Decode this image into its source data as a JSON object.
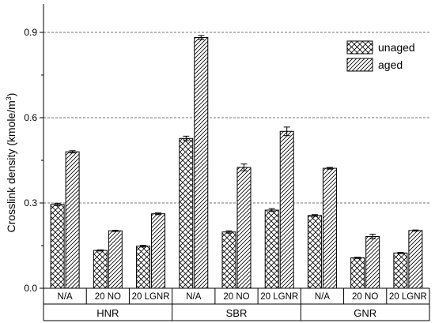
{
  "chart_data": {
    "type": "bar",
    "ylabel": "Crosslink density (kmole/m",
    "ylabel_sup": "3",
    "ylabel_close": ")",
    "ylim": [
      0,
      1.0
    ],
    "yticks": [
      "0.0",
      "0.3",
      "0.6",
      "0.9"
    ],
    "ytick_values": [
      0.0,
      0.3,
      0.6,
      0.9
    ],
    "grid": "horizontal-dashed",
    "legend_position": "top-right",
    "groups": [
      {
        "name": "HNR",
        "categories": [
          "N/A",
          "20 NO",
          "20 LGNR"
        ]
      },
      {
        "name": "SBR",
        "categories": [
          "N/A",
          "20 NO",
          "20 LGNR"
        ]
      },
      {
        "name": "GNR",
        "categories": [
          "N/A",
          "20 NO",
          "20 LGNR"
        ]
      }
    ],
    "series": [
      {
        "name": "unaged",
        "pattern": "crosshatch",
        "values": [
          0.295,
          0.133,
          0.148,
          0.527,
          0.198,
          0.275,
          0.256,
          0.107,
          0.124
        ],
        "errors": [
          0.004,
          0.002,
          0.003,
          0.008,
          0.004,
          0.005,
          0.003,
          0.002,
          0.002
        ]
      },
      {
        "name": "aged",
        "pattern": "diagonal",
        "values": [
          0.48,
          0.202,
          0.262,
          0.882,
          0.425,
          0.552,
          0.422,
          0.182,
          0.203
        ],
        "errors": [
          0.004,
          0.002,
          0.003,
          0.007,
          0.012,
          0.015,
          0.003,
          0.008,
          0.002
        ]
      }
    ]
  }
}
